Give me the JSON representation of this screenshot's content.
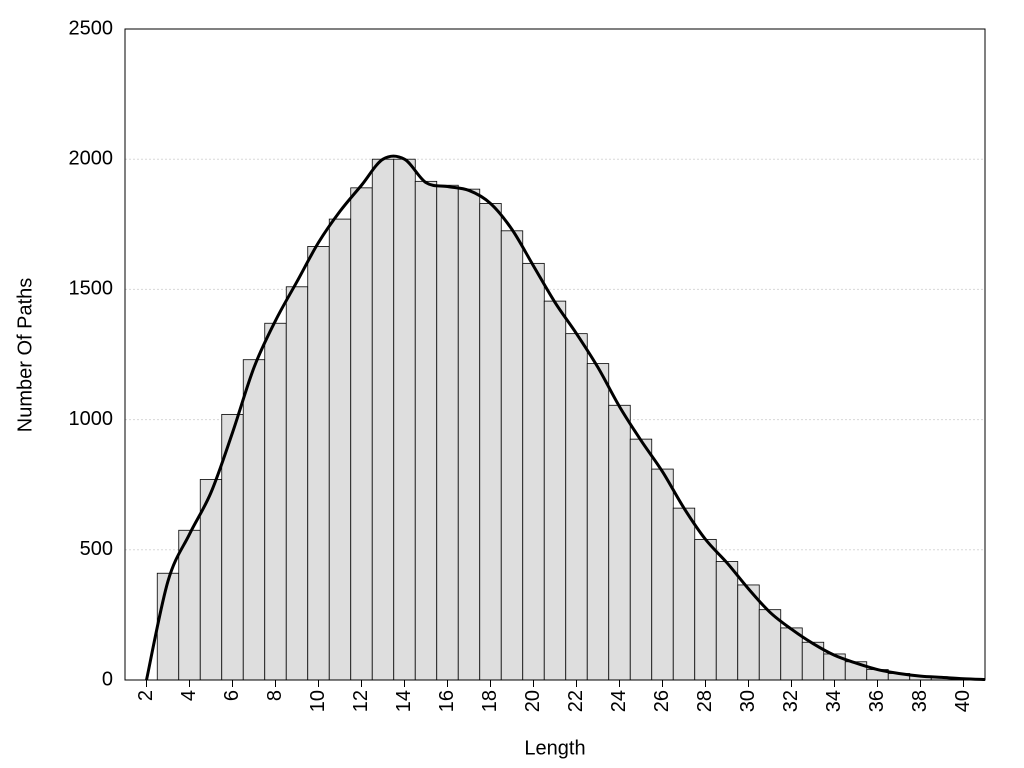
{
  "chart_data": {
    "type": "histogram",
    "x_label": "Length",
    "y_label": "Number Of Paths",
    "bins": [
      2.5,
      3.5,
      4.5,
      5.5,
      6.5,
      7.5,
      8.5,
      9.5,
      10.5,
      11.5,
      12.5,
      13.5,
      14.5,
      15.5,
      16.5,
      17.5,
      18.5,
      19.5,
      20.5,
      21.5,
      22.5,
      23.5,
      24.5,
      25.5,
      26.5,
      27.5,
      28.5,
      29.5,
      30.5,
      31.5,
      32.5,
      33.5,
      34.5,
      35.5,
      36.5,
      37.5,
      38.5,
      39.5,
      40.5
    ],
    "counts": [
      410,
      575,
      770,
      1020,
      1230,
      1370,
      1510,
      1665,
      1770,
      1890,
      2000,
      2000,
      1915,
      1900,
      1885,
      1830,
      1725,
      1600,
      1455,
      1330,
      1215,
      1055,
      925,
      810,
      660,
      540,
      455,
      365,
      270,
      200,
      145,
      100,
      70,
      40,
      25,
      15,
      10,
      5
    ],
    "color": "#dedede",
    "line": {
      "color": "#000000",
      "x": [
        2,
        3,
        4,
        5,
        6,
        7,
        8,
        9,
        10,
        11,
        12,
        13,
        14,
        15,
        16,
        17,
        18,
        19,
        20,
        21,
        22,
        23,
        24,
        25,
        26,
        27,
        28,
        29,
        30,
        31,
        32,
        33,
        34,
        35,
        36,
        37,
        38,
        39,
        40,
        41
      ],
      "values": [
        0,
        380,
        560,
        720,
        950,
        1200,
        1380,
        1530,
        1680,
        1800,
        1900,
        2000,
        2000,
        1910,
        1895,
        1880,
        1830,
        1730,
        1590,
        1450,
        1330,
        1200,
        1050,
        920,
        800,
        660,
        540,
        450,
        350,
        260,
        195,
        140,
        95,
        65,
        40,
        25,
        15,
        10,
        5,
        2
      ]
    },
    "xlim": [
      1,
      41
    ],
    "xticks": [
      2,
      4,
      6,
      8,
      10,
      12,
      14,
      16,
      18,
      20,
      22,
      24,
      26,
      28,
      30,
      32,
      34,
      36,
      38,
      40
    ],
    "ylim": [
      0,
      2500
    ],
    "yticks": [
      0,
      500,
      1000,
      1500,
      2000,
      2500
    ],
    "grid": true
  }
}
